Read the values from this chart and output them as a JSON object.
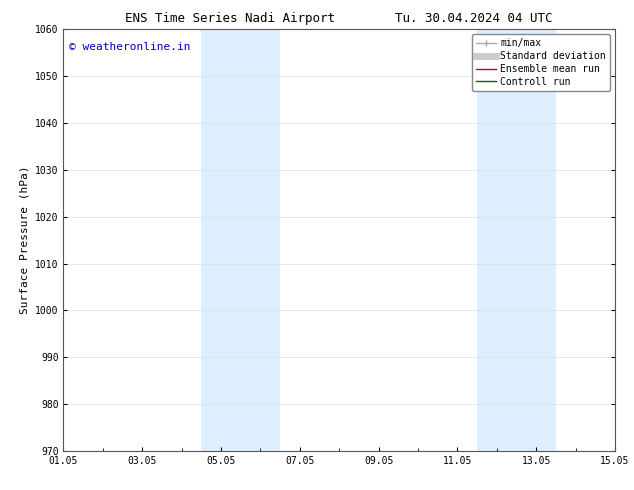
{
  "title_left": "ENS Time Series Nadi Airport",
  "title_right": "Tu. 30.04.2024 04 UTC",
  "ylabel": "Surface Pressure (hPa)",
  "ylim": [
    970,
    1060
  ],
  "yticks": [
    970,
    980,
    990,
    1000,
    1010,
    1020,
    1030,
    1040,
    1050,
    1060
  ],
  "xlim": [
    0,
    14
  ],
  "xtick_labels": [
    "01.05",
    "03.05",
    "05.05",
    "07.05",
    "09.05",
    "11.05",
    "13.05",
    "15.05"
  ],
  "xtick_positions": [
    0,
    2,
    4,
    6,
    8,
    10,
    12,
    14
  ],
  "shaded_bands": [
    {
      "x_start": 3.5,
      "x_end": 4.5,
      "color": "#ddeeff",
      "alpha": 1.0
    },
    {
      "x_start": 4.5,
      "x_end": 5.5,
      "color": "#ddeeff",
      "alpha": 1.0
    },
    {
      "x_start": 10.5,
      "x_end": 11.5,
      "color": "#ddeeff",
      "alpha": 1.0
    },
    {
      "x_start": 11.5,
      "x_end": 12.5,
      "color": "#ddeeff",
      "alpha": 1.0
    }
  ],
  "watermark_text": "© weatheronline.in",
  "watermark_color": "#0000bb",
  "watermark_fontsize": 8,
  "legend_items": [
    {
      "label": "min/max",
      "color": "#aaaaaa",
      "linewidth": 1.0
    },
    {
      "label": "Standard deviation",
      "color": "#cccccc",
      "linewidth": 5
    },
    {
      "label": "Ensemble mean run",
      "color": "#cc0000",
      "linewidth": 1.0
    },
    {
      "label": "Controll run",
      "color": "#006600",
      "linewidth": 1.0
    }
  ],
  "background_color": "#ffffff",
  "grid_color": "#dddddd",
  "title_fontsize": 9,
  "axis_label_fontsize": 8,
  "tick_fontsize": 7,
  "legend_fontsize": 7
}
